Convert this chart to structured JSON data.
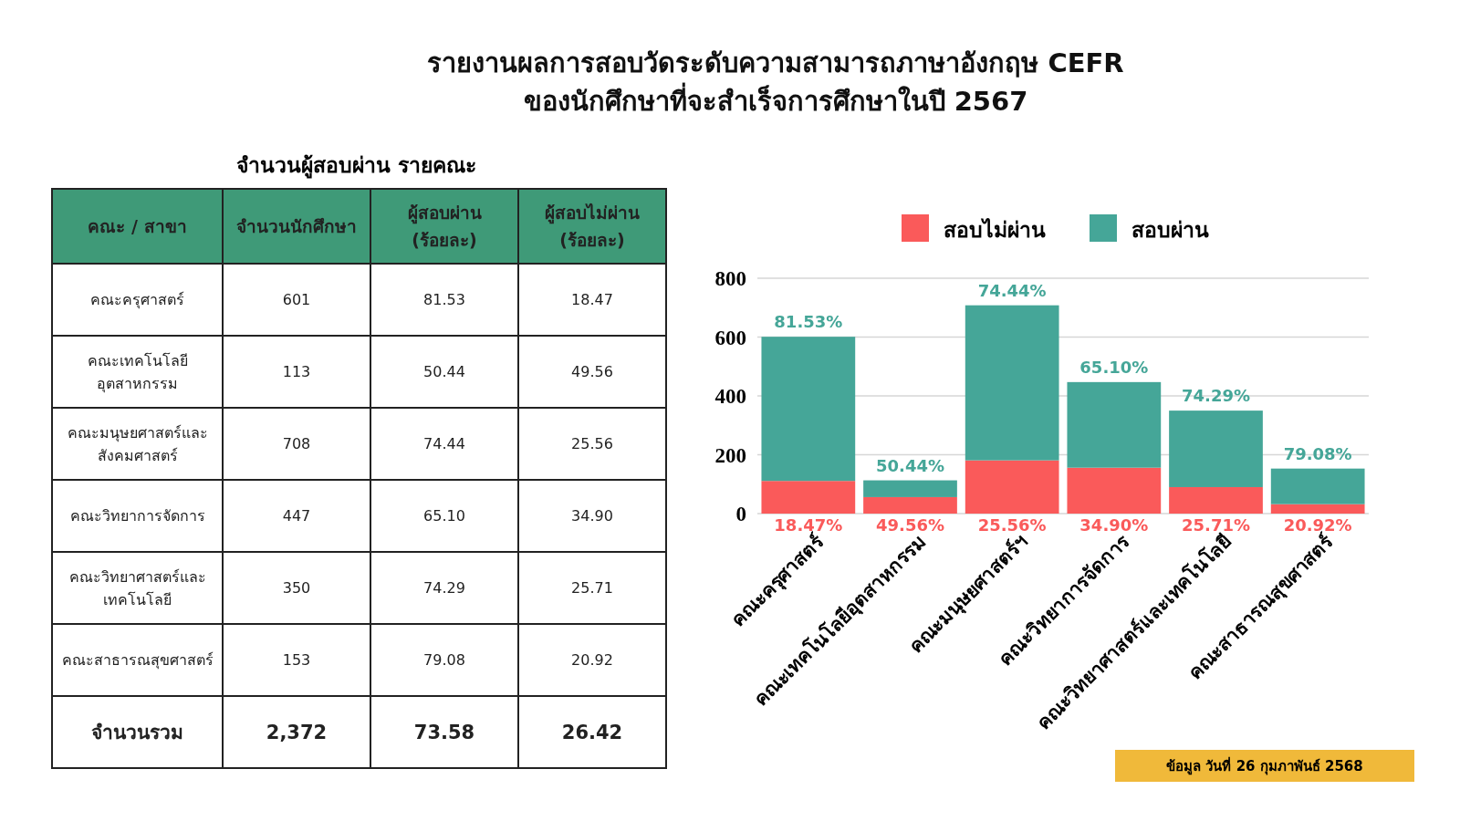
{
  "chart_data": [
    {
      "type": "other",
      "title": "รายงานผลการสอบวัดระดับความสามารถภาษาอังกฤษ CEFR\nของนักศึกษาที่จะสำเร็จการศึกษาในปี 2567",
      "subtitle": "จำนวนผู้สอบผ่าน รายคณะ",
      "ylabel": "คณะ / สาขา",
      "categories": [
        "จำนวนนักศึกษา",
        "ผู้สอบผ่าน\n(ร้อยละ)",
        "ผู้สอบไม่ผ่าน\n(ร้อยละ)"
      ],
      "y_categories": [
        "คณะครุศาสตร์",
        "คณะเทคโนโลยี\nอุตสาหกรรม",
        "คณะมนุษยศาสตร์และ\nสังคมศาสตร์",
        "คณะวิทยาการจัดการ",
        "คณะวิทยาศาสตร์และ\nเทคโนโลยี",
        "คณะสาธารณสุขศาสตร์",
        "จำนวนรวม"
      ],
      "cell_labels": [
        [
          "601",
          "81.53",
          "18.47"
        ],
        [
          "113",
          "50.44",
          "49.56"
        ],
        [
          "708",
          "74.44",
          "25.56"
        ],
        [
          "447",
          "65.10",
          "34.90"
        ],
        [
          "350",
          "74.29",
          "25.71"
        ],
        [
          "153",
          "79.08",
          "20.92"
        ],
        [
          "2,372",
          "73.58",
          "26.42"
        ]
      ]
    },
    {
      "type": "bar",
      "stacked": true,
      "categories": [
        "คณะครุศาสตร์",
        "คณะเทคโนโลยีอุตสาหกรรม",
        "คณะมนุษยศาสตร์ฯ",
        "คณะวิทยาการจัดการ",
        "คณะวิทยาศาสตร์และเทคโนโลยี",
        "คณะสาธารณสุขศาสตร์"
      ],
      "series": [
        {
          "name": "สอบไม่ผ่าน",
          "color": "#fa5a5a",
          "values": [
            111,
            56,
            181,
            156,
            90,
            32
          ]
        },
        {
          "name": "สอบผ่าน",
          "color": "#45a698",
          "values": [
            490,
            57,
            527,
            291,
            260,
            121
          ]
        }
      ],
      "ylim": [
        0,
        800
      ],
      "yticks": [
        0,
        200,
        400,
        600,
        800
      ],
      "grid": "y",
      "legend": "top",
      "annotations": [
        {
          "text": "81.53%",
          "x": "คณะครุศาสตร์",
          "y": 601
        },
        {
          "text": "50.44%",
          "x": "คณะเทคโนโลยีอุตสาหกรรม",
          "y": 113
        },
        {
          "text": "74.44%",
          "x": "คณะมนุษยศาสตร์ฯ",
          "y": 708
        },
        {
          "text": "65.10%",
          "x": "คณะวิทยาการจัดการ",
          "y": 447
        },
        {
          "text": "74.29%",
          "x": "คณะวิทยาศาสตร์และเทคโนโลยี",
          "y": 350
        },
        {
          "text": "79.08%",
          "x": "คณะสาธารณสุขศาสตร์",
          "y": 153
        },
        {
          "text": "18.47%",
          "x": "คณะครุศาสตร์",
          "y": 0
        },
        {
          "text": "49.56%",
          "x": "คณะเทคโนโลยีอุตสาหกรรม",
          "y": 0
        },
        {
          "text": "25.56%",
          "x": "คณะมนุษยศาสตร์ฯ",
          "y": 0
        },
        {
          "text": "34.90%",
          "x": "คณะวิทยาการจัดการ",
          "y": 0
        },
        {
          "text": "25.71%",
          "x": "คณะวิทยาศาสตร์และเทคโนโลยี",
          "y": 0
        },
        {
          "text": "20.92%",
          "x": "คณะสาธารณสุขศาสตร์",
          "y": 0
        },
        "ข้อมูล วันที่ 26 กุมภาพันธ์ 2568"
      ]
    }
  ]
}
